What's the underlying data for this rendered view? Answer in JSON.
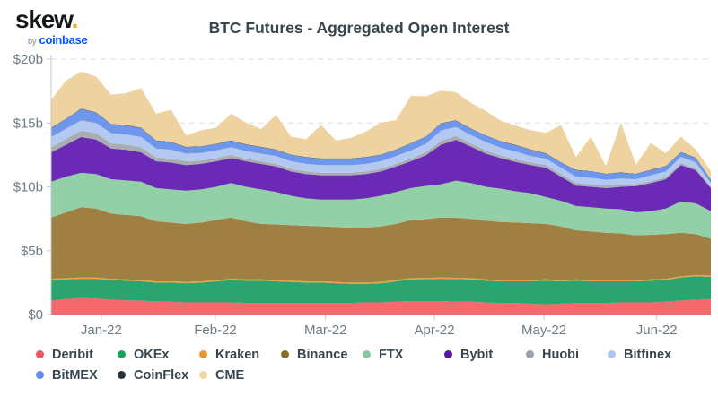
{
  "logo": {
    "text": "skew",
    "dot": ".",
    "by": "by",
    "brand": "coinbase"
  },
  "title": "BTC Futures - Aggregated Open Interest",
  "colors": {
    "background": "#ffffff",
    "title": "#37474f",
    "axis_label": "#6d7b84",
    "grid": "#d9dcdf",
    "axis_line": "#c3c9cd",
    "legend_label": "#37474f",
    "logo_dot": "#f5a623",
    "brand_blue": "#0052ff"
  },
  "chart_data": {
    "type": "area",
    "stacked": true,
    "title": "BTC Futures - Aggregated Open Interest",
    "unit": "billions USD",
    "xlabel": "",
    "ylabel": "",
    "ylim": [
      0,
      20
    ],
    "grid": "dashed-horizontal",
    "legend_position": "bottom",
    "y_ticks": [
      {
        "label": "$20b",
        "value": 20
      },
      {
        "label": "$15b",
        "value": 15
      },
      {
        "label": "$10b",
        "value": 10
      },
      {
        "label": "$5b",
        "value": 5
      },
      {
        "label": "$0",
        "value": 0
      }
    ],
    "x_ticks": [
      {
        "label": "Jan-22",
        "pos": 0.076
      },
      {
        "label": "Feb-22",
        "pos": 0.249
      },
      {
        "label": "Mar-22",
        "pos": 0.416
      },
      {
        "label": "Apr-22",
        "pos": 0.581
      },
      {
        "label": "May-22",
        "pos": 0.747
      },
      {
        "label": "Jun-22",
        "pos": 0.918
      }
    ],
    "x_span_note": "daily samples, mid-Dec 2021 through mid-Jun 2022",
    "series": [
      {
        "name": "Deribit",
        "color": "#f4696c",
        "legend_color": "#f4555e",
        "values": [
          1.1,
          1.2,
          1.3,
          1.25,
          1.15,
          1.1,
          1.1,
          1.0,
          1.0,
          0.95,
          0.95,
          0.95,
          0.95,
          0.9,
          0.9,
          0.9,
          0.9,
          0.9,
          0.9,
          0.9,
          0.9,
          0.95,
          0.95,
          1.0,
          1.05,
          1.05,
          1.05,
          1.0,
          1.0,
          0.95,
          0.9,
          0.9,
          0.85,
          0.8,
          0.85,
          0.9,
          0.9,
          0.9,
          0.95,
          0.95,
          0.95,
          1.0,
          1.1,
          1.15,
          1.2
        ]
      },
      {
        "name": "OKEx",
        "color": "#2ca470",
        "legend_color": "#18a45c",
        "values": [
          1.6,
          1.55,
          1.5,
          1.55,
          1.55,
          1.55,
          1.5,
          1.5,
          1.5,
          1.5,
          1.55,
          1.65,
          1.75,
          1.75,
          1.75,
          1.7,
          1.65,
          1.6,
          1.6,
          1.55,
          1.5,
          1.45,
          1.5,
          1.6,
          1.7,
          1.72,
          1.75,
          1.78,
          1.75,
          1.7,
          1.7,
          1.7,
          1.75,
          1.85,
          1.75,
          1.75,
          1.7,
          1.7,
          1.65,
          1.65,
          1.7,
          1.7,
          1.8,
          1.85,
          1.75
        ]
      },
      {
        "name": "Kraken",
        "color": "#e8a33d",
        "legend_color": "#e49b2d",
        "values": [
          0.1,
          0.1,
          0.1,
          0.1,
          0.1,
          0.1,
          0.1,
          0.1,
          0.1,
          0.1,
          0.1,
          0.1,
          0.1,
          0.1,
          0.1,
          0.1,
          0.1,
          0.1,
          0.1,
          0.1,
          0.1,
          0.1,
          0.1,
          0.1,
          0.1,
          0.1,
          0.1,
          0.1,
          0.1,
          0.1,
          0.1,
          0.1,
          0.1,
          0.1,
          0.1,
          0.1,
          0.1,
          0.1,
          0.1,
          0.1,
          0.1,
          0.1,
          0.1,
          0.1,
          0.1
        ]
      },
      {
        "name": "Binance",
        "color": "#a07f42",
        "legend_color": "#8a6d22",
        "values": [
          4.8,
          5.15,
          5.5,
          5.4,
          5.1,
          5.05,
          5.0,
          4.7,
          4.6,
          4.55,
          4.6,
          4.7,
          4.8,
          4.55,
          4.35,
          4.35,
          4.35,
          4.35,
          4.3,
          4.3,
          4.3,
          4.3,
          4.35,
          4.4,
          4.55,
          4.6,
          4.7,
          4.7,
          4.65,
          4.6,
          4.55,
          4.5,
          4.45,
          4.35,
          4.2,
          3.85,
          3.8,
          3.7,
          3.65,
          3.5,
          3.5,
          3.5,
          3.4,
          3.2,
          2.9
        ]
      },
      {
        "name": "FTX",
        "color": "#93cfa7",
        "legend_color": "#85cb9f",
        "values": [
          2.8,
          2.8,
          2.7,
          2.7,
          2.7,
          2.7,
          2.7,
          2.6,
          2.6,
          2.6,
          2.6,
          2.6,
          2.7,
          2.7,
          2.7,
          2.55,
          2.3,
          2.15,
          2.1,
          2.15,
          2.2,
          2.3,
          2.4,
          2.5,
          2.5,
          2.6,
          2.6,
          2.9,
          2.8,
          2.65,
          2.6,
          2.45,
          2.35,
          2.1,
          2.0,
          1.9,
          1.9,
          1.9,
          1.9,
          1.8,
          1.85,
          2.0,
          2.45,
          2.4,
          2.15
        ]
      },
      {
        "name": "Bybit",
        "color": "#6b2ab5",
        "legend_color": "#5d13a8",
        "values": [
          2.3,
          2.5,
          2.8,
          2.7,
          2.4,
          2.4,
          2.3,
          2.1,
          2.1,
          2.0,
          2.0,
          2.0,
          1.95,
          2.0,
          2.0,
          2.0,
          1.9,
          1.9,
          1.9,
          1.9,
          1.9,
          1.9,
          1.9,
          2.0,
          2.1,
          2.4,
          3.1,
          3.2,
          2.85,
          2.6,
          2.4,
          2.3,
          2.2,
          2.3,
          1.9,
          1.6,
          1.6,
          1.6,
          1.75,
          2.05,
          2.2,
          2.3,
          2.85,
          2.6,
          1.8
        ]
      },
      {
        "name": "Huobi",
        "color": "#a9acb0",
        "legend_color": "#9ba1a7",
        "values": [
          0.4,
          0.45,
          0.5,
          0.5,
          0.4,
          0.4,
          0.4,
          0.3,
          0.3,
          0.3,
          0.25,
          0.25,
          0.25,
          0.2,
          0.2,
          0.2,
          0.2,
          0.2,
          0.2,
          0.2,
          0.2,
          0.2,
          0.2,
          0.2,
          0.2,
          0.25,
          0.3,
          0.3,
          0.25,
          0.25,
          0.2,
          0.2,
          0.2,
          0.2,
          0.2,
          0.2,
          0.2,
          0.2,
          0.2,
          0.15,
          0.15,
          0.15,
          0.15,
          0.15,
          0.1
        ]
      },
      {
        "name": "Bitfinex",
        "color": "#b3c9f2",
        "legend_color": "#a9c4f5",
        "values": [
          0.8,
          0.8,
          0.8,
          0.8,
          0.8,
          0.8,
          0.8,
          0.7,
          0.7,
          0.6,
          0.6,
          0.6,
          0.6,
          0.6,
          0.6,
          0.6,
          0.6,
          0.6,
          0.6,
          0.6,
          0.6,
          0.6,
          0.6,
          0.6,
          0.65,
          0.65,
          0.8,
          0.7,
          0.65,
          0.65,
          0.6,
          0.6,
          0.5,
          0.5,
          0.5,
          0.5,
          0.5,
          0.45,
          0.45,
          0.4,
          0.45,
          0.45,
          0.5,
          0.45,
          0.3
        ]
      },
      {
        "name": "BitMEX",
        "color": "#6e96ea",
        "legend_color": "#5f8df0",
        "values": [
          0.7,
          0.75,
          0.9,
          0.8,
          0.7,
          0.7,
          0.7,
          0.6,
          0.6,
          0.5,
          0.5,
          0.5,
          0.5,
          0.5,
          0.5,
          0.5,
          0.5,
          0.5,
          0.5,
          0.5,
          0.5,
          0.5,
          0.5,
          0.5,
          0.55,
          0.55,
          0.55,
          0.5,
          0.5,
          0.5,
          0.5,
          0.5,
          0.5,
          0.4,
          0.4,
          0.5,
          0.5,
          0.45,
          0.45,
          0.4,
          0.4,
          0.4,
          0.35,
          0.35,
          0.25
        ]
      },
      {
        "name": "CoinFlex",
        "color": "#263238",
        "legend_color": "#263238",
        "values": [
          0.03,
          0.03,
          0.03,
          0.03,
          0.03,
          0.03,
          0.03,
          0.03,
          0.03,
          0.03,
          0.03,
          0.03,
          0.03,
          0.03,
          0.03,
          0.03,
          0.03,
          0.03,
          0.03,
          0.03,
          0.03,
          0.03,
          0.03,
          0.03,
          0.03,
          0.03,
          0.03,
          0.03,
          0.03,
          0.03,
          0.03,
          0.03,
          0.03,
          0.03,
          0.03,
          0.03,
          0.03,
          0.03,
          0.03,
          0.03,
          0.03,
          0.03,
          0.03,
          0.03,
          0.03
        ]
      },
      {
        "name": "CME",
        "color": "#eed3a1",
        "legend_color": "#f0d6a2",
        "values": [
          2.2,
          3.0,
          2.9,
          2.8,
          2.3,
          2.5,
          3.1,
          2.1,
          2.5,
          0.9,
          1.25,
          1.25,
          2.1,
          1.7,
          1.4,
          2.7,
          1.4,
          1.4,
          2.6,
          1.4,
          1.6,
          2.0,
          2.5,
          2.3,
          3.7,
          3.15,
          2.55,
          2.2,
          2.0,
          1.9,
          1.6,
          1.5,
          1.5,
          1.6,
          2.9,
          1.0,
          2.7,
          0.6,
          3.9,
          0.7,
          2.1,
          1.0,
          1.2,
          0.65,
          0.65
        ]
      }
    ]
  }
}
